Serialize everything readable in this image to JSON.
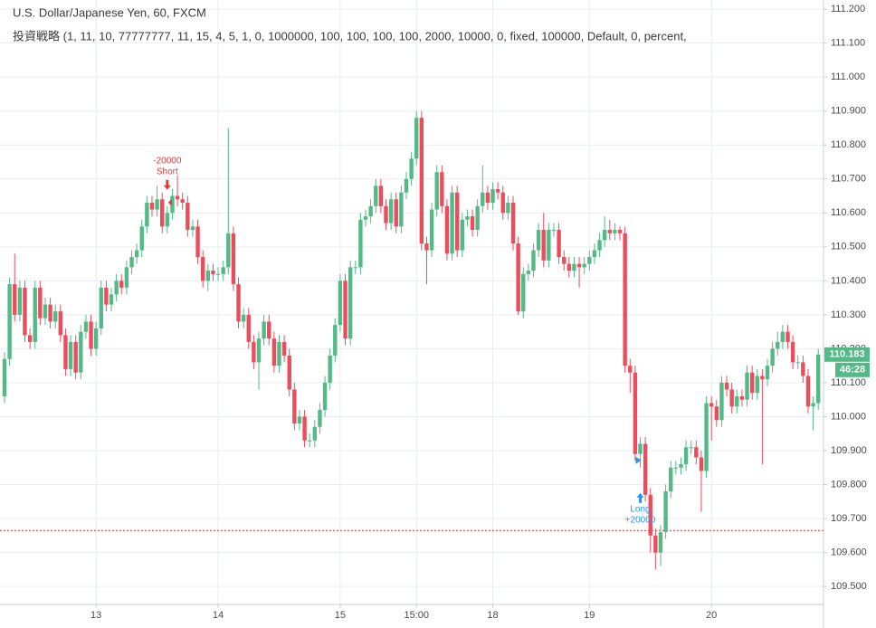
{
  "chart_data": {
    "type": "candlestick",
    "title": "U.S. Dollar/Japanese Yen, 60, FXCM",
    "subtitle": "投資戦略 (1, 11, 10, 77777777, 11, 15, 4, 5, 1, 0, 1000000, 100, 100, 100, 100, 2000, 10000, 0, fixed, 100000, Default, 0, percent,",
    "categories": [
      null,
      null,
      null,
      null,
      null,
      null,
      null,
      null,
      null,
      null,
      null,
      null,
      null,
      null,
      null,
      null,
      null,
      null,
      "13",
      null,
      null,
      null,
      null,
      null,
      null,
      null,
      null,
      null,
      null,
      null,
      null,
      null,
      null,
      null,
      null,
      null,
      null,
      null,
      null,
      null,
      null,
      null,
      "14",
      null,
      null,
      null,
      null,
      null,
      null,
      null,
      null,
      null,
      null,
      null,
      null,
      null,
      null,
      null,
      null,
      null,
      null,
      null,
      null,
      null,
      null,
      null,
      "15",
      null,
      null,
      null,
      null,
      null,
      null,
      null,
      null,
      null,
      null,
      null,
      null,
      null,
      null,
      "15:00",
      null,
      null,
      null,
      null,
      null,
      null,
      null,
      null,
      null,
      null,
      null,
      null,
      null,
      null,
      "18",
      null,
      null,
      null,
      null,
      null,
      null,
      null,
      null,
      null,
      null,
      null,
      null,
      null,
      null,
      null,
      null,
      null,
      null,
      "19",
      null,
      null,
      null,
      null,
      null,
      null,
      null,
      null,
      null,
      null,
      null,
      null,
      null,
      null,
      null,
      null,
      null,
      null,
      null,
      null,
      null,
      null,
      null,
      "20",
      null,
      null,
      null,
      null,
      null,
      null,
      null,
      null,
      null,
      null,
      null,
      null,
      null,
      null,
      null,
      null,
      null,
      null,
      null,
      null,
      null
    ],
    "open": [
      110.06,
      110.17,
      110.39,
      110.3,
      110.38,
      110.24,
      110.22,
      110.38,
      110.29,
      110.33,
      110.28,
      110.31,
      110.24,
      110.14,
      110.22,
      110.13,
      110.25,
      110.28,
      110.2,
      110.26,
      110.38,
      110.33,
      110.36,
      110.4,
      110.38,
      110.44,
      110.47,
      110.49,
      110.56,
      110.63,
      110.61,
      110.64,
      110.56,
      110.6,
      110.65,
      110.64,
      110.63,
      110.55,
      110.56,
      110.47,
      110.4,
      110.43,
      110.42,
      110.42,
      110.44,
      110.54,
      110.39,
      110.28,
      110.3,
      110.22,
      110.16,
      110.23,
      110.28,
      110.23,
      110.15,
      110.22,
      110.18,
      110.08,
      109.98,
      110.0,
      109.93,
      109.93,
      109.97,
      110.02,
      110.1,
      110.18,
      110.27,
      110.4,
      110.23,
      110.44,
      110.44,
      110.58,
      110.59,
      110.62,
      110.68,
      110.62,
      110.57,
      110.64,
      110.56,
      110.66,
      110.7,
      110.76,
      110.88,
      110.51,
      110.49,
      110.61,
      110.72,
      110.62,
      110.48,
      110.66,
      110.49,
      110.58,
      110.59,
      110.55,
      110.62,
      110.66,
      110.63,
      110.67,
      110.66,
      110.6,
      110.63,
      110.51,
      110.31,
      110.42,
      110.43,
      110.49,
      110.55,
      110.46,
      110.55,
      110.55,
      110.47,
      110.45,
      110.43,
      110.45,
      110.44,
      110.45,
      110.47,
      110.49,
      110.52,
      110.55,
      110.54,
      110.55,
      110.54,
      110.15,
      110.13,
      109.89,
      109.92,
      109.77,
      109.65,
      109.6,
      109.66,
      109.78,
      109.85,
      109.85,
      109.86,
      109.91,
      109.91,
      109.88,
      109.84,
      110.04,
      110.03,
      109.99,
      110.1,
      110.08,
      110.03,
      110.06,
      110.05,
      110.13,
      110.07,
      110.12,
      110.11,
      110.15,
      110.2,
      110.22,
      110.25,
      110.22,
      110.16,
      110.16,
      110.12,
      110.03,
      110.04
    ],
    "high": [
      110.19,
      110.41,
      110.48,
      110.4,
      110.4,
      110.26,
      110.4,
      110.4,
      110.35,
      110.35,
      110.33,
      110.33,
      110.26,
      110.24,
      110.24,
      110.27,
      110.3,
      110.3,
      110.28,
      110.4,
      110.4,
      110.38,
      110.42,
      110.42,
      110.46,
      110.49,
      110.51,
      110.58,
      110.65,
      110.65,
      110.68,
      110.66,
      110.62,
      110.67,
      110.71,
      110.66,
      110.65,
      110.58,
      110.58,
      110.49,
      110.45,
      110.45,
      110.44,
      110.46,
      110.85,
      110.56,
      110.41,
      110.32,
      110.32,
      110.24,
      110.25,
      110.3,
      110.3,
      110.25,
      110.24,
      110.24,
      110.2,
      110.1,
      110.02,
      110.02,
      109.95,
      109.99,
      110.04,
      110.12,
      110.2,
      110.29,
      110.42,
      110.42,
      110.46,
      110.46,
      110.6,
      110.61,
      110.64,
      110.7,
      110.7,
      110.64,
      110.66,
      110.66,
      110.68,
      110.72,
      110.78,
      110.9,
      110.9,
      110.53,
      110.63,
      110.74,
      110.74,
      110.64,
      110.68,
      110.68,
      110.6,
      110.61,
      110.61,
      110.64,
      110.74,
      110.68,
      110.69,
      110.69,
      110.68,
      110.65,
      110.65,
      110.53,
      110.44,
      110.45,
      110.51,
      110.57,
      110.6,
      110.57,
      110.57,
      110.57,
      110.49,
      110.47,
      110.47,
      110.47,
      110.47,
      110.49,
      110.51,
      110.54,
      110.59,
      110.58,
      110.57,
      110.56,
      110.56,
      110.17,
      110.15,
      109.94,
      109.94,
      109.79,
      109.67,
      109.68,
      109.8,
      109.87,
      109.87,
      109.88,
      109.93,
      109.93,
      109.93,
      109.9,
      110.06,
      110.06,
      110.05,
      110.12,
      110.12,
      110.1,
      110.08,
      110.08,
      110.15,
      110.15,
      110.14,
      110.14,
      110.17,
      110.22,
      110.25,
      110.27,
      110.27,
      110.24,
      110.18,
      110.18,
      110.14,
      110.06,
      110.2
    ],
    "low": [
      110.04,
      110.15,
      110.28,
      110.28,
      110.22,
      110.2,
      110.2,
      110.27,
      110.27,
      110.26,
      110.26,
      110.22,
      110.12,
      110.12,
      110.11,
      110.11,
      110.23,
      110.18,
      110.18,
      110.24,
      110.31,
      110.31,
      110.34,
      110.36,
      110.36,
      110.42,
      110.45,
      110.47,
      110.54,
      110.59,
      110.59,
      110.54,
      110.54,
      110.58,
      110.62,
      110.61,
      110.53,
      110.53,
      110.45,
      110.38,
      110.37,
      110.4,
      110.4,
      110.4,
      110.42,
      110.37,
      110.26,
      110.26,
      110.2,
      110.14,
      110.08,
      110.21,
      110.21,
      110.13,
      110.13,
      110.16,
      110.06,
      109.96,
      109.96,
      109.91,
      109.91,
      109.91,
      109.95,
      110.0,
      110.08,
      110.16,
      110.25,
      110.21,
      110.21,
      110.42,
      110.42,
      110.56,
      110.57,
      110.6,
      110.6,
      110.55,
      110.55,
      110.54,
      110.54,
      110.64,
      110.68,
      110.74,
      110.49,
      110.39,
      110.47,
      110.59,
      110.6,
      110.46,
      110.46,
      110.47,
      110.47,
      110.56,
      110.53,
      110.53,
      110.6,
      110.61,
      110.61,
      110.64,
      110.58,
      110.58,
      110.49,
      110.3,
      110.29,
      110.4,
      110.41,
      110.47,
      110.44,
      110.44,
      110.53,
      110.45,
      110.43,
      110.41,
      110.41,
      110.38,
      110.42,
      110.43,
      110.45,
      110.47,
      110.5,
      110.52,
      110.52,
      110.52,
      110.13,
      110.07,
      109.87,
      109.85,
      109.75,
      109.6,
      109.55,
      109.56,
      109.64,
      109.76,
      109.83,
      109.83,
      109.84,
      109.89,
      109.86,
      109.72,
      109.82,
      109.93,
      109.97,
      109.97,
      110.06,
      110.01,
      110.01,
      110.03,
      110.03,
      110.05,
      110.05,
      109.86,
      110.09,
      110.13,
      110.18,
      110.2,
      110.2,
      110.14,
      110.14,
      110.1,
      110.01,
      109.96,
      110.02
    ],
    "close": [
      110.17,
      110.39,
      110.3,
      110.38,
      110.24,
      110.22,
      110.38,
      110.29,
      110.33,
      110.28,
      110.31,
      110.24,
      110.14,
      110.22,
      110.13,
      110.25,
      110.28,
      110.2,
      110.26,
      110.38,
      110.33,
      110.36,
      110.4,
      110.38,
      110.44,
      110.47,
      110.49,
      110.56,
      110.63,
      110.61,
      110.64,
      110.56,
      110.6,
      110.65,
      110.64,
      110.63,
      110.55,
      110.56,
      110.47,
      110.4,
      110.43,
      110.42,
      110.42,
      110.44,
      110.54,
      110.39,
      110.28,
      110.3,
      110.22,
      110.16,
      110.23,
      110.28,
      110.23,
      110.15,
      110.22,
      110.18,
      110.08,
      109.98,
      110.0,
      109.93,
      109.93,
      109.97,
      110.02,
      110.1,
      110.18,
      110.27,
      110.4,
      110.23,
      110.44,
      110.44,
      110.58,
      110.59,
      110.62,
      110.68,
      110.62,
      110.57,
      110.64,
      110.56,
      110.66,
      110.7,
      110.76,
      110.88,
      110.51,
      110.49,
      110.61,
      110.72,
      110.62,
      110.48,
      110.66,
      110.49,
      110.58,
      110.59,
      110.55,
      110.62,
      110.66,
      110.63,
      110.67,
      110.66,
      110.6,
      110.63,
      110.51,
      110.31,
      110.42,
      110.43,
      110.49,
      110.55,
      110.46,
      110.55,
      110.55,
      110.47,
      110.45,
      110.43,
      110.45,
      110.44,
      110.45,
      110.47,
      110.49,
      110.52,
      110.55,
      110.54,
      110.55,
      110.54,
      110.15,
      110.13,
      109.89,
      109.92,
      109.77,
      109.65,
      109.6,
      109.66,
      109.78,
      109.85,
      109.85,
      109.86,
      109.91,
      109.91,
      109.88,
      109.84,
      110.04,
      110.03,
      109.99,
      110.1,
      110.08,
      110.03,
      110.06,
      110.05,
      110.13,
      110.07,
      110.12,
      110.11,
      110.15,
      110.2,
      110.22,
      110.25,
      110.22,
      110.16,
      110.16,
      110.12,
      110.03,
      110.04,
      110.183
    ],
    "close_label": "110.183",
    "countdown": "46:28",
    "up_color": "#53b987",
    "down_color": "#eb4d5c",
    "ylim": [
      109.447,
      111.227
    ],
    "yticks": [
      {
        "value": 111.2,
        "label": "111.200"
      },
      {
        "value": 111.1,
        "label": "111.100"
      },
      {
        "value": 111.0,
        "label": "111.000"
      },
      {
        "value": 110.9,
        "label": "110.900"
      },
      {
        "value": 110.8,
        "label": "110.800"
      },
      {
        "value": 110.7,
        "label": "110.700"
      },
      {
        "value": 110.6,
        "label": "110.600"
      },
      {
        "value": 110.5,
        "label": "110.500"
      },
      {
        "value": 110.4,
        "label": "110.400"
      },
      {
        "value": 110.3,
        "label": "110.300"
      },
      {
        "value": 110.2,
        "label": "110.200"
      },
      {
        "value": 110.1,
        "label": "110.100"
      },
      {
        "value": 110.0,
        "label": "110.000"
      },
      {
        "value": 109.9,
        "label": "109.900"
      },
      {
        "value": 109.8,
        "label": "109.800"
      },
      {
        "value": 109.7,
        "label": "109.700"
      },
      {
        "value": 109.6,
        "label": "109.600"
      },
      {
        "value": 109.5,
        "label": "109.500"
      }
    ],
    "grid": true,
    "stop_line": {
      "value": 109.665,
      "color": "#d32f2f"
    },
    "annotations": [
      {
        "index": 32,
        "side": "above",
        "color": "#e53935",
        "lines": [
          "-20000",
          "Short"
        ]
      },
      {
        "index": 125,
        "side": "below",
        "color": "#2196f3",
        "lines": [
          "Long",
          "+20000"
        ]
      }
    ]
  }
}
